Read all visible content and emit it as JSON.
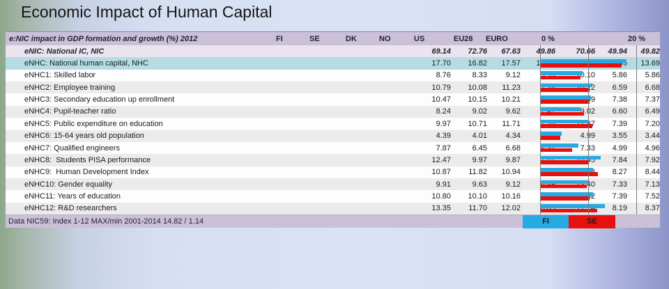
{
  "title": "Economic Impact of Human Capital",
  "table": {
    "header_label": "e:NIC impact in GDP formation and growth (%) 2012",
    "columns": [
      "FI",
      "SE",
      "DK",
      "NO",
      "US",
      "EU28",
      "EURO"
    ],
    "axis": {
      "min_label": "0 %",
      "max_label": "20 %"
    },
    "rows": [
      {
        "label": "eNIC: National IC, NIC",
        "style": "enic",
        "bars": false,
        "values": [
          "69.14",
          "72.76",
          "67.63",
          "49.86",
          "70.66",
          "49.94",
          "49.82"
        ]
      },
      {
        "label": "eNHC: National human capital, NHC",
        "style": "enhc",
        "bars": true,
        "values": [
          "17.70",
          "16.82",
          "17.57",
          "12.67",
          "17.98",
          "13.95",
          "13.69"
        ]
      },
      {
        "label": "eNHC1: Skilled labor",
        "style": "odd",
        "bars": true,
        "values": [
          "8.76",
          "8.33",
          "9.12",
          "5.59",
          "10.10",
          "5.86",
          "5.86"
        ]
      },
      {
        "label": "eNHC2: Employee training",
        "style": "even",
        "bars": true,
        "values": [
          "10.79",
          "10.08",
          "11.23",
          "7.24",
          "10.22",
          "6.59",
          "6.68"
        ]
      },
      {
        "label": "eNHC3: Secondary education up enrollment",
        "style": "odd",
        "bars": true,
        "values": [
          "10.47",
          "10.15",
          "10.21",
          "7.72",
          "11.99",
          "7.38",
          "7.37"
        ]
      },
      {
        "label": "eNHC4: Pupil-teacher ratio",
        "style": "even",
        "bars": true,
        "values": [
          "8.24",
          "9.02",
          "9.62",
          "7.41",
          "9.02",
          "6.60",
          "6.49"
        ]
      },
      {
        "label": "eNHC5: Public expenditure on education",
        "style": "odd",
        "bars": true,
        "values": [
          "9.97",
          "10.71",
          "11.71",
          "7.26",
          "11.87",
          "7.39",
          "7.20"
        ]
      },
      {
        "label": "eNHC6: 15-64 years old population",
        "style": "even",
        "bars": true,
        "values": [
          "4.39",
          "4.01",
          "4.34",
          "3.04",
          "4.99",
          "3.55",
          "3.44"
        ]
      },
      {
        "label": "eNHC7: Qualified engineers",
        "style": "odd",
        "bars": true,
        "values": [
          "7.87",
          "6.45",
          "6.68",
          "4.31",
          "7.33",
          "4.99",
          "4.96"
        ]
      },
      {
        "label": "eNHC8:  Students PISA performance",
        "style": "even",
        "bars": true,
        "values": [
          "12.47",
          "9.97",
          "9.87",
          "7.01",
          "10.45",
          "7.84",
          "7.92"
        ]
      },
      {
        "label": "eNHC9:  Human Development Index",
        "style": "odd",
        "bars": true,
        "values": [
          "10.87",
          "11.82",
          "10.94",
          "9.79",
          "14.08",
          "8.27",
          "8.44"
        ]
      },
      {
        "label": "eNHC10: Gender equality",
        "style": "even",
        "bars": true,
        "values": [
          "9.91",
          "9.63",
          "9.12",
          "6.89",
          "13.40",
          "7.33",
          "7.13"
        ]
      },
      {
        "label": "eNHC11: Years of education",
        "style": "odd",
        "bars": true,
        "values": [
          "10.80",
          "10.10",
          "10.16",
          "7.77",
          "10.32",
          "7.39",
          "7.52"
        ]
      },
      {
        "label": "eNHC12: R&D researchers",
        "style": "even",
        "bars": true,
        "values": [
          "13.35",
          "11.70",
          "12.02",
          "8.03",
          "11.74",
          "8.19",
          "8.37"
        ]
      }
    ],
    "footer_label": "Data NIC59: Index 1-12 MAX/min 2001-2014 14.82 / 1.14"
  },
  "legend": [
    {
      "label": "FI",
      "color": "#27aae1"
    },
    {
      "label": "SE",
      "color": "#e8100c"
    }
  ],
  "colors": {
    "fi_bar": "#27aae1",
    "se_bar": "#e8100c",
    "header_band": "#cbc1d6",
    "enhc_highlight": "#b5dce4",
    "enic_row": "#e9e4ee",
    "gridline": "#7a7a7a"
  },
  "chart_data": {
    "type": "bar",
    "orientation": "horizontal",
    "title": "e:NIC impact in GDP formation and growth (%) 2012",
    "xlabel": "%",
    "ylabel": "",
    "xlim": [
      0,
      20
    ],
    "x_ticks": [
      "0 %",
      "20 %"
    ],
    "gridlines_pct": [
      0,
      10,
      20
    ],
    "grid": true,
    "legend_position": "bottom",
    "categories": [
      "eNHC: National human capital, NHC",
      "eNHC1: Skilled labor",
      "eNHC2: Employee training",
      "eNHC3: Secondary education up enrollment",
      "eNHC4: Pupil-teacher ratio",
      "eNHC5: Public expenditure on education",
      "eNHC6: 15-64 years old population",
      "eNHC7: Qualified engineers",
      "eNHC8: Students PISA performance",
      "eNHC9: Human Development Index",
      "eNHC10: Gender equality",
      "eNHC11: Years of education",
      "eNHC12: R&D researchers"
    ],
    "series": [
      {
        "name": "FI",
        "color": "#27aae1",
        "values": [
          17.7,
          8.76,
          10.79,
          10.47,
          8.24,
          9.97,
          4.39,
          7.87,
          12.47,
          10.87,
          9.91,
          10.8,
          13.35
        ]
      },
      {
        "name": "SE",
        "color": "#e8100c",
        "values": [
          16.82,
          8.33,
          10.08,
          10.15,
          9.02,
          10.71,
          4.01,
          6.45,
          9.97,
          11.82,
          9.63,
          10.1,
          11.7
        ]
      }
    ]
  }
}
